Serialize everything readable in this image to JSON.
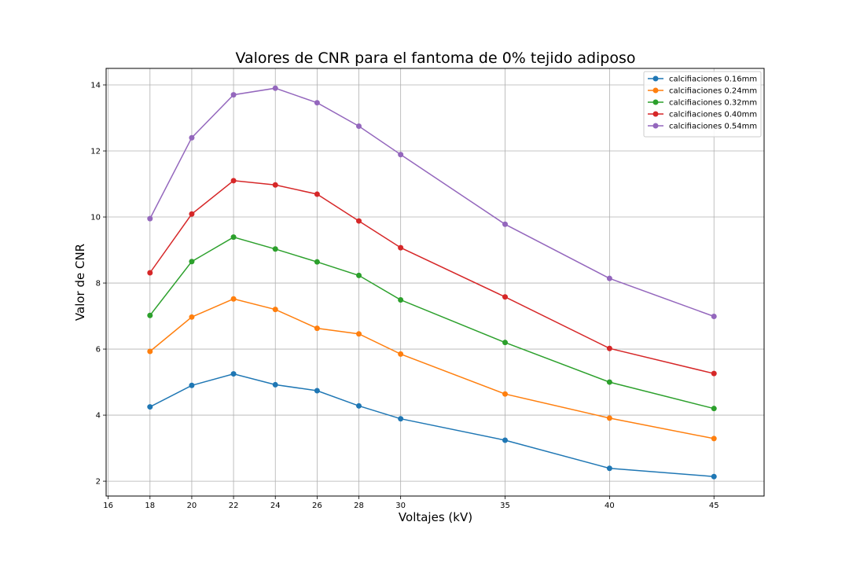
{
  "chart_data": {
    "type": "line",
    "title": "Valores de CNR para el fantoma de 0% tejido adiposo",
    "xlabel": "Voltajes (kV)",
    "ylabel": "Valor de CNR",
    "x": [
      18,
      20,
      22,
      24,
      26,
      28,
      30,
      35,
      40,
      45
    ],
    "xticks": [
      16,
      18,
      20,
      22,
      24,
      26,
      28,
      30,
      35,
      40,
      45
    ],
    "yticks": [
      2,
      4,
      6,
      8,
      10,
      12,
      14
    ],
    "xlim": [
      15.9,
      47.4
    ],
    "ylim": [
      1.55,
      14.5
    ],
    "grid": true,
    "legend_position": "top-right",
    "series": [
      {
        "name": "calcifiaciones 0.16mm",
        "color": "#1f77b4",
        "values": [
          4.25,
          4.9,
          5.25,
          4.92,
          4.74,
          4.28,
          3.89,
          3.24,
          2.39,
          2.14
        ]
      },
      {
        "name": "calcifiaciones 0.24mm",
        "color": "#ff7f0e",
        "values": [
          5.93,
          6.97,
          7.52,
          7.2,
          6.63,
          6.46,
          5.85,
          4.64,
          3.91,
          3.29
        ]
      },
      {
        "name": "calcifiaciones 0.32mm",
        "color": "#2ca02c",
        "values": [
          7.02,
          8.65,
          9.39,
          9.03,
          8.64,
          8.23,
          7.49,
          6.2,
          5.0,
          4.2
        ]
      },
      {
        "name": "calcifiaciones 0.40mm",
        "color": "#d62728",
        "values": [
          8.31,
          10.09,
          11.1,
          10.97,
          10.69,
          9.88,
          9.07,
          7.58,
          6.02,
          5.26
        ]
      },
      {
        "name": "calcifiaciones 0.54mm",
        "color": "#9467bd",
        "values": [
          9.95,
          12.4,
          13.7,
          13.9,
          13.46,
          12.75,
          11.89,
          9.78,
          8.14,
          6.99
        ]
      }
    ]
  }
}
